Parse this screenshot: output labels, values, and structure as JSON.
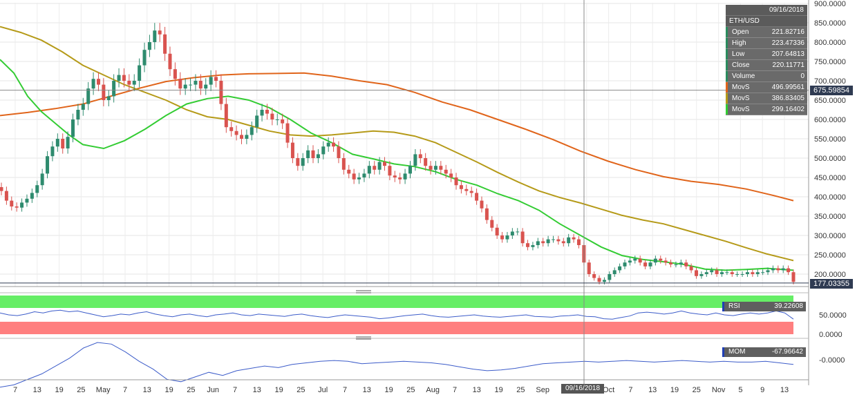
{
  "chart_data": [
    {
      "type": "candlestick",
      "symbol": "ETH/USD",
      "y_axis": {
        "range": [
          170,
          900
        ],
        "ticks": [
          "900.0000",
          "850.0000",
          "800.0000",
          "750.0000",
          "700.0000",
          "650.0000",
          "600.0000",
          "550.0000",
          "500.0000",
          "450.0000",
          "400.0000",
          "350.0000",
          "300.0000",
          "250.0000",
          "200.0000"
        ]
      },
      "x_axis": {
        "ticks": [
          "7",
          "13",
          "19",
          "25",
          "May",
          "7",
          "13",
          "19",
          "25",
          "Jun",
          "7",
          "13",
          "19",
          "25",
          "Jul",
          "7",
          "13",
          "19",
          "25",
          "Aug",
          "7",
          "13",
          "19",
          "25",
          "Sep",
          "7",
          "25",
          "Oct",
          "7",
          "13",
          "19",
          "25",
          "Nov",
          "5",
          "9",
          "13"
        ]
      },
      "crosshair": {
        "date": "09/16/2018",
        "price": "675.59854"
      },
      "last_price": "177.03355",
      "info": {
        "date": "09/16/2018",
        "symbol": "ETH/USD",
        "rows": [
          {
            "label": "Open",
            "value": "221.82716"
          },
          {
            "label": "High",
            "value": "223.47336"
          },
          {
            "label": "Low",
            "value": "207.64813"
          },
          {
            "label": "Close",
            "value": "220.11771"
          },
          {
            "label": "Volume",
            "value": "0"
          }
        ],
        "moving_averages": [
          {
            "label": "MovS",
            "value": "496.99561",
            "color": "#e0641a"
          },
          {
            "label": "MovS",
            "value": "386.83405",
            "color": "#b59a18"
          },
          {
            "label": "MovS",
            "value": "299.16402",
            "color": "#33cc33"
          }
        ]
      },
      "closes": [
        415,
        390,
        375,
        372,
        385,
        395,
        410,
        430,
        460,
        505,
        530,
        550,
        525,
        555,
        600,
        625,
        640,
        680,
        705,
        690,
        650,
        660,
        700,
        715,
        700,
        690,
        700,
        740,
        780,
        800,
        830,
        820,
        770,
        730,
        705,
        680,
        690,
        690,
        700,
        680,
        690,
        710,
        700,
        640,
        580,
        570,
        560,
        550,
        560,
        580,
        610,
        625,
        615,
        600,
        600,
        590,
        540,
        500,
        480,
        500,
        520,
        500,
        510,
        530,
        540,
        530,
        500,
        470,
        460,
        445,
        450,
        460,
        480,
        470,
        490,
        480,
        455,
        450,
        445,
        460,
        480,
        510,
        500,
        480,
        470,
        480,
        470,
        460,
        450,
        430,
        420,
        415,
        410,
        390,
        370,
        340,
        320,
        300,
        290,
        300,
        310,
        310,
        280,
        270,
        275,
        285,
        280,
        290,
        290,
        285,
        280,
        295,
        290,
        275,
        230,
        200,
        190,
        180,
        185,
        200,
        210,
        220,
        230,
        235,
        240,
        230,
        220,
        230,
        240,
        235,
        230,
        225,
        225,
        230,
        220,
        210,
        195,
        200,
        205,
        210,
        200,
        205,
        205,
        200,
        200,
        200,
        205,
        200,
        205,
        205,
        210,
        215,
        210,
        215,
        205,
        180
      ],
      "series": [
        {
          "name": "MovS",
          "color": "#e0641a",
          "points": [
            [
              0,
              610
            ],
            [
              40,
              618
            ],
            [
              80,
              628
            ],
            [
              120,
              640
            ],
            [
              160,
              660
            ],
            [
              200,
              680
            ],
            [
              240,
              698
            ],
            [
              280,
              708
            ],
            [
              320,
              715
            ],
            [
              360,
              718
            ],
            [
              400,
              719
            ],
            [
              440,
              720
            ],
            [
              480,
              712
            ],
            [
              520,
              700
            ],
            [
              560,
              690
            ],
            [
              600,
              670
            ],
            [
              640,
              645
            ],
            [
              680,
              625
            ],
            [
              720,
              600
            ],
            [
              760,
              575
            ],
            [
              800,
              548
            ],
            [
              840,
              518
            ],
            [
              880,
              492
            ],
            [
              920,
              470
            ],
            [
              960,
              452
            ],
            [
              1000,
              440
            ],
            [
              1040,
              432
            ],
            [
              1080,
              420
            ],
            [
              1120,
              403
            ],
            [
              1148,
              390
            ]
          ]
        },
        {
          "name": "MovS",
          "color": "#b59a18",
          "points": [
            [
              0,
              840
            ],
            [
              30,
              825
            ],
            [
              60,
              805
            ],
            [
              90,
              775
            ],
            [
              120,
              740
            ],
            [
              150,
              715
            ],
            [
              180,
              690
            ],
            [
              210,
              670
            ],
            [
              240,
              650
            ],
            [
              270,
              625
            ],
            [
              300,
              607
            ],
            [
              330,
              600
            ],
            [
              360,
              585
            ],
            [
              390,
              570
            ],
            [
              420,
              560
            ],
            [
              450,
              557
            ],
            [
              480,
              560
            ],
            [
              510,
              565
            ],
            [
              540,
              570
            ],
            [
              570,
              567
            ],
            [
              600,
              557
            ],
            [
              630,
              540
            ],
            [
              660,
              515
            ],
            [
              690,
              490
            ],
            [
              720,
              463
            ],
            [
              750,
              438
            ],
            [
              780,
              415
            ],
            [
              810,
              398
            ],
            [
              840,
              384
            ],
            [
              870,
              368
            ],
            [
              900,
              352
            ],
            [
              930,
              340
            ],
            [
              960,
              330
            ],
            [
              990,
              315
            ],
            [
              1020,
              300
            ],
            [
              1050,
              285
            ],
            [
              1080,
              268
            ],
            [
              1110,
              252
            ],
            [
              1148,
              235
            ]
          ]
        },
        {
          "name": "MovS",
          "color": "#33cc33",
          "points": [
            [
              0,
              755
            ],
            [
              20,
              720
            ],
            [
              40,
              660
            ],
            [
              60,
              620
            ],
            [
              80,
              590
            ],
            [
              100,
              560
            ],
            [
              120,
              535
            ],
            [
              150,
              525
            ],
            [
              180,
              545
            ],
            [
              210,
              575
            ],
            [
              240,
              610
            ],
            [
              270,
              640
            ],
            [
              300,
              654
            ],
            [
              330,
              660
            ],
            [
              360,
              650
            ],
            [
              390,
              630
            ],
            [
              420,
              600
            ],
            [
              450,
              565
            ],
            [
              480,
              540
            ],
            [
              510,
              510
            ],
            [
              540,
              498
            ],
            [
              570,
              485
            ],
            [
              600,
              478
            ],
            [
              630,
              465
            ],
            [
              660,
              445
            ],
            [
              690,
              430
            ],
            [
              720,
              408
            ],
            [
              750,
              390
            ],
            [
              780,
              365
            ],
            [
              810,
              330
            ],
            [
              840,
              300
            ],
            [
              870,
              270
            ],
            [
              900,
              248
            ],
            [
              930,
              238
            ],
            [
              960,
              232
            ],
            [
              990,
              225
            ],
            [
              1020,
              213
            ],
            [
              1050,
              210
            ],
            [
              1080,
              212
            ],
            [
              1110,
              215
            ],
            [
              1148,
              210
            ]
          ]
        }
      ]
    },
    {
      "type": "line",
      "name": "RSI",
      "value": "39.22608",
      "y_axis": {
        "ticks": [
          "50.0000",
          "0.0000"
        ]
      },
      "values": [
        55,
        50,
        48,
        52,
        58,
        55,
        60,
        62,
        58,
        60,
        55,
        50,
        45,
        48,
        52,
        50,
        55,
        58,
        52,
        48,
        45,
        50,
        52,
        48,
        45,
        50,
        52,
        55,
        50,
        48,
        52,
        50,
        48,
        46,
        50,
        52,
        48,
        45,
        43,
        47,
        50,
        48,
        46,
        44,
        40,
        42,
        45,
        48,
        50,
        52,
        48,
        45,
        44,
        46,
        48,
        50,
        47,
        45,
        44,
        46,
        48,
        50,
        46,
        45,
        44,
        47,
        48,
        50,
        46,
        45,
        40,
        39,
        43,
        47,
        55,
        57,
        55,
        52,
        55,
        60,
        55,
        52,
        50,
        55,
        50,
        48,
        52,
        55,
        52,
        55,
        60,
        55,
        39
      ]
    },
    {
      "type": "line",
      "name": "MOM",
      "value": "-67.96642",
      "y_axis": {
        "ticks": [
          "-0.0000"
        ]
      },
      "values": [
        -350,
        -320,
        -250,
        -180,
        -80,
        20,
        150,
        220,
        200,
        100,
        -20,
        -120,
        -250,
        -280,
        -220,
        -160,
        -200,
        -140,
        -110,
        -80,
        -100,
        -60,
        -40,
        -20,
        -10,
        -20,
        -50,
        -40,
        -30,
        -20,
        -30,
        -40,
        -60,
        -90,
        -120,
        -140,
        -130,
        -110,
        -80,
        -50,
        -40,
        -30,
        -20,
        -30,
        -20,
        -10,
        -20,
        -30,
        -20,
        -10,
        -20,
        -30,
        -20,
        -30,
        -30,
        -20,
        -40,
        -60
      ]
    }
  ]
}
